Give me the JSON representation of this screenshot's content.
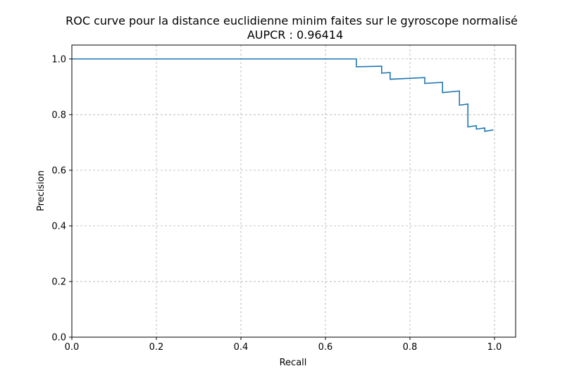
{
  "chart_data": {
    "type": "line",
    "title": "ROC curve pour la distance euclidienne minim faites sur le gyroscope normalisé",
    "subtitle": "AUPCR : 0.96414",
    "xlabel": "Recall",
    "ylabel": "Precision",
    "xlim": [
      0.0,
      1.05
    ],
    "ylim": [
      0.0,
      1.05
    ],
    "xticks": [
      0.0,
      0.2,
      0.4,
      0.6,
      0.8,
      1.0
    ],
    "xtick_labels": [
      "0.0",
      "0.2",
      "0.4",
      "0.6",
      "0.8",
      "1.0"
    ],
    "yticks": [
      0.0,
      0.2,
      0.4,
      0.6,
      0.8,
      1.0
    ],
    "ytick_labels": [
      "0.0",
      "0.2",
      "0.4",
      "0.6",
      "0.8",
      "1.0"
    ],
    "grid": true,
    "grid_style": "dashed",
    "series": [
      {
        "color": "#1f77b4",
        "x": [
          0.0,
          0.673,
          0.673,
          0.733,
          0.733,
          0.753,
          0.753,
          0.835,
          0.835,
          0.877,
          0.877,
          0.917,
          0.917,
          0.937,
          0.937,
          0.957,
          0.957,
          0.977,
          0.977,
          0.997
        ],
        "y": [
          1.0,
          1.0,
          0.972,
          0.974,
          0.949,
          0.951,
          0.927,
          0.933,
          0.912,
          0.916,
          0.879,
          0.885,
          0.834,
          0.838,
          0.756,
          0.76,
          0.748,
          0.752,
          0.74,
          0.745
        ]
      }
    ]
  }
}
